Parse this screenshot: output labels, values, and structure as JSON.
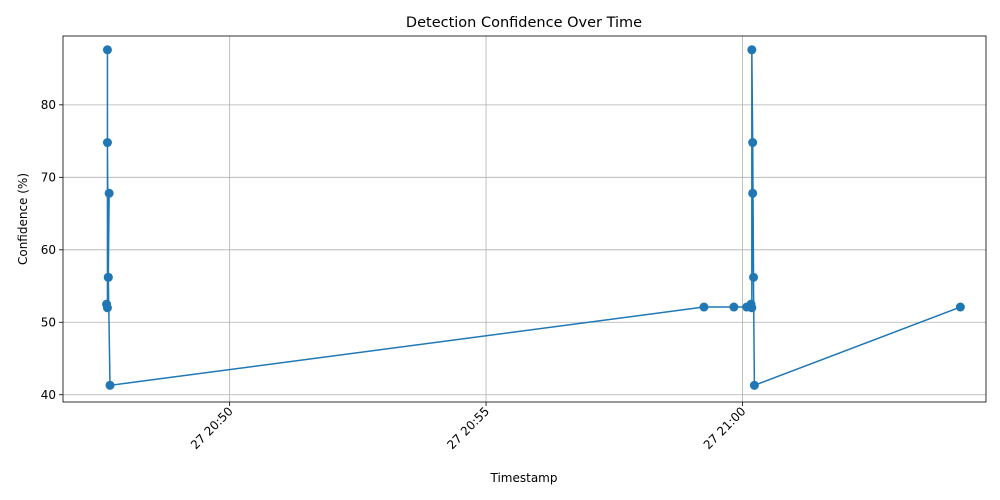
{
  "chart_data": {
    "type": "line",
    "title": "Detection Confidence Over Time",
    "xlabel": "Timestamp",
    "ylabel": "Confidence (%)",
    "x_tick_labels": [
      "27 20:50",
      "27 20:55",
      "27 21:00"
    ],
    "x_tick_values": [
      "20:50:00",
      "20:55:00",
      "21:00:00"
    ],
    "xlim": [
      "20:46:45",
      "21:04:45"
    ],
    "y_ticks": [
      40,
      50,
      60,
      70,
      80
    ],
    "ylim": [
      39,
      89.5
    ],
    "grid": true,
    "series": [
      {
        "color": "#1f77b4",
        "marker": "circle",
        "x": [
          "20:47:36",
          "20:47:37",
          "20:47:37",
          "20:47:37",
          "20:47:38",
          "20:47:39",
          "20:47:38",
          "20:47:40",
          "20:59:15",
          "20:59:50",
          "21:00:05",
          "21:00:10",
          "21:00:11",
          "21:00:11",
          "21:00:12",
          "21:00:13",
          "21:00:12",
          "21:00:14",
          "21:04:15"
        ],
        "y": [
          52.5,
          52.0,
          87.6,
          74.8,
          56.2,
          67.8,
          56.2,
          41.3,
          52.1,
          52.1,
          52.1,
          52.5,
          52.0,
          87.6,
          74.8,
          56.2,
          67.8,
          41.3,
          52.1
        ]
      }
    ]
  }
}
